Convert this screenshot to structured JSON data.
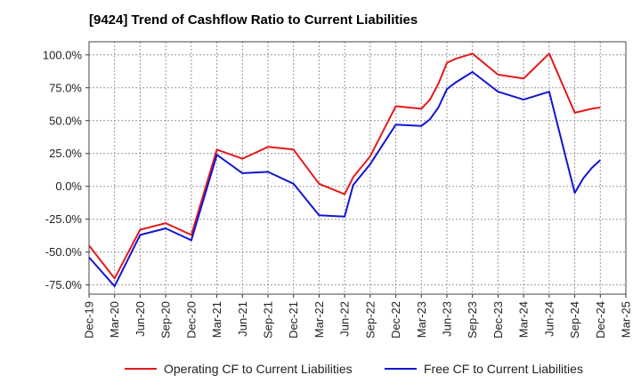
{
  "title": "[9424]  Trend of Cashflow Ratio to Current Liabilities",
  "chart_data": {
    "type": "line",
    "title": "[9424]  Trend of Cashflow Ratio to Current Liabilities",
    "xlabel": "",
    "ylabel": "",
    "ylim": [
      -82,
      110
    ],
    "yticks": [
      100,
      75,
      50,
      25,
      0,
      -25,
      -50,
      -75
    ],
    "ytick_labels": [
      "100.0%",
      "75.0%",
      "50.0%",
      "25.0%",
      "0.0%",
      "-25.0%",
      "-50.0%",
      "-75.0%"
    ],
    "grid": true,
    "legend": "bottom",
    "x_tick_labels": [
      "Dec-19",
      "Mar-20",
      "Jun-20",
      "Sep-20",
      "Dec-20",
      "Mar-21",
      "Jun-21",
      "Sep-21",
      "Dec-21",
      "Mar-22",
      "Jun-22",
      "Sep-22",
      "Dec-22",
      "Mar-23",
      "Jun-23",
      "Sep-23",
      "Dec-23",
      "Mar-24",
      "Jun-24",
      "Sep-24",
      "Dec-24",
      "Mar-25"
    ],
    "series": [
      {
        "name": "Operating CF to Current Liabilities",
        "color": "#e31a1c",
        "points": [
          [
            "Dec-19",
            -45
          ],
          [
            "Mar-20",
            -70
          ],
          [
            "Jun-20",
            -33
          ],
          [
            "Sep-20",
            -28
          ],
          [
            "Dec-20",
            -37
          ],
          [
            "Mar-21",
            28
          ],
          [
            "Jun-21",
            21
          ],
          [
            "Sep-21",
            30
          ],
          [
            "Dec-21",
            28
          ],
          [
            "Mar-22",
            2
          ],
          [
            "Jun-22",
            -6
          ],
          [
            "Jul-22",
            7
          ],
          [
            "Sep-22",
            23
          ],
          [
            "Dec-22",
            61
          ],
          [
            "Mar-23",
            59
          ],
          [
            "Apr-23",
            66
          ],
          [
            "May-23",
            78
          ],
          [
            "Jun-23",
            94
          ],
          [
            "Jul-23",
            97
          ],
          [
            "Sep-23",
            101
          ],
          [
            "Dec-23",
            85
          ],
          [
            "Mar-24",
            82
          ],
          [
            "Jun-24",
            101
          ],
          [
            "Sep-24",
            56
          ],
          [
            "Nov-24",
            59
          ],
          [
            "Dec-24",
            60
          ]
        ]
      },
      {
        "name": "Free CF to Current Liabilities",
        "color": "#1414d2",
        "points": [
          [
            "Dec-19",
            -54
          ],
          [
            "Mar-20",
            -76
          ],
          [
            "Jun-20",
            -37
          ],
          [
            "Sep-20",
            -32
          ],
          [
            "Dec-20",
            -41
          ],
          [
            "Mar-21",
            24
          ],
          [
            "Jun-21",
            10
          ],
          [
            "Sep-21",
            11
          ],
          [
            "Dec-21",
            2
          ],
          [
            "Mar-22",
            -22
          ],
          [
            "Jun-22",
            -23
          ],
          [
            "Jul-22",
            1
          ],
          [
            "Sep-22",
            17
          ],
          [
            "Dec-22",
            47
          ],
          [
            "Mar-23",
            46
          ],
          [
            "Apr-23",
            51
          ],
          [
            "May-23",
            60
          ],
          [
            "Jun-23",
            74
          ],
          [
            "Jul-23",
            79
          ],
          [
            "Sep-23",
            87
          ],
          [
            "Dec-23",
            72
          ],
          [
            "Mar-24",
            66
          ],
          [
            "Jun-24",
            72
          ],
          [
            "Sep-24",
            -5
          ],
          [
            "Oct-24",
            6
          ],
          [
            "Nov-24",
            14
          ],
          [
            "Dec-24",
            20
          ]
        ]
      }
    ]
  }
}
